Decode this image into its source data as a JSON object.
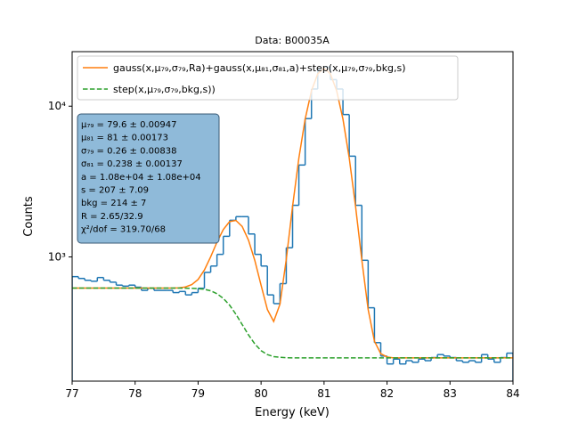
{
  "chart_data": {
    "type": "fit",
    "title": "Data: B00035A",
    "xlabel": "Energy (keV)",
    "ylabel": "Counts",
    "xlim": [
      77,
      84
    ],
    "xticks": [
      77,
      78,
      79,
      80,
      81,
      82,
      83,
      84
    ],
    "ylim": [
      150,
      23000
    ],
    "yticks": [
      {
        "value": 1000,
        "label": "10³"
      },
      {
        "value": 10000,
        "label": "10⁴"
      }
    ],
    "log_y": true,
    "histogram": {
      "color": "#1f77b4",
      "bins": [
        77.0,
        77.1,
        77.2,
        77.3,
        77.4,
        77.5,
        77.6,
        77.7,
        77.8,
        77.9,
        78.0,
        78.1,
        78.2,
        78.3,
        78.4,
        78.5,
        78.6,
        78.7,
        78.8,
        78.9,
        79.0,
        79.1,
        79.2,
        79.3,
        79.4,
        79.5,
        79.6,
        79.7,
        79.8,
        79.9,
        80.0,
        80.1,
        80.2,
        80.3,
        80.4,
        80.5,
        80.6,
        80.7,
        80.8,
        80.9,
        81.0,
        81.1,
        81.2,
        81.3,
        81.4,
        81.5,
        81.6,
        81.7,
        81.8,
        81.9,
        82.0,
        82.1,
        82.2,
        82.3,
        82.4,
        82.5,
        82.6,
        82.7,
        82.8,
        82.9,
        83.0,
        83.1,
        83.2,
        83.3,
        83.4,
        83.5,
        83.6,
        83.7,
        83.8,
        83.9,
        84.0
      ],
      "counts": [
        740,
        720,
        700,
        690,
        730,
        700,
        680,
        650,
        640,
        650,
        630,
        600,
        620,
        600,
        600,
        600,
        580,
        590,
        560,
        580,
        620,
        790,
        870,
        1040,
        1370,
        1750,
        1850,
        1850,
        1420,
        1040,
        870,
        560,
        490,
        665,
        1150,
        2200,
        4070,
        8270,
        13000,
        17500,
        18200,
        15000,
        13000,
        8800,
        4660,
        2200,
        950,
        460,
        270,
        220,
        195,
        210,
        195,
        205,
        200,
        210,
        205,
        215,
        225,
        220,
        215,
        205,
        200,
        205,
        200,
        225,
        210,
        200,
        215,
        230
      ]
    },
    "x": [
      77.0,
      77.1,
      77.2,
      77.3,
      77.4,
      77.5,
      77.6,
      77.7,
      77.8,
      77.9,
      78.0,
      78.1,
      78.2,
      78.3,
      78.4,
      78.5,
      78.6,
      78.7,
      78.8,
      78.9,
      79.0,
      79.1,
      79.2,
      79.3,
      79.4,
      79.5,
      79.6,
      79.7,
      79.8,
      79.9,
      80.0,
      80.1,
      80.2,
      80.3,
      80.4,
      80.5,
      80.6,
      80.7,
      80.8,
      80.9,
      81.0,
      81.1,
      81.2,
      81.3,
      81.4,
      81.5,
      81.6,
      81.7,
      81.8,
      81.9,
      82.0,
      82.1,
      82.2,
      82.3,
      82.4,
      82.5,
      82.6,
      82.7,
      82.8,
      82.9,
      83.0,
      83.1,
      83.2,
      83.3,
      83.4,
      83.5,
      83.6,
      83.7,
      83.8,
      83.9,
      84.0
    ],
    "series": [
      {
        "name": "gauss(x,μ₇₉,σ₇₉,Ra)+gauss(x,μ₈₁,σ₈₁,a)+step(x,μ₇₉,σ₇₉,bkg,s)",
        "color": "#ff7f0e",
        "dashed": false,
        "values": [
          621,
          621,
          621,
          621,
          621,
          621,
          621,
          621,
          621,
          621,
          621,
          621,
          621,
          621,
          621,
          621,
          621,
          624,
          632,
          655,
          709,
          819,
          1003,
          1254,
          1520,
          1715,
          1747,
          1592,
          1293,
          949,
          649,
          448,
          373,
          486,
          964,
          2167,
          4524,
          8214,
          12654,
          16414,
          17914,
          16414,
          12654,
          8214,
          4524,
          2164,
          952,
          448,
          276,
          228,
          217,
          214,
          214,
          214,
          214,
          214,
          214,
          214,
          214,
          214,
          214,
          214,
          214,
          214,
          214,
          214,
          214,
          214,
          214,
          214,
          214
        ]
      },
      {
        "name": "step(x,μ₇₉,σ₇₉,bkg,s))",
        "color": "#2ca02c",
        "dashed": true,
        "values": [
          621,
          621,
          621,
          621,
          621,
          621,
          621,
          621,
          621,
          621,
          621,
          621,
          621,
          621,
          621,
          621,
          621,
          621,
          620,
          619,
          616,
          610,
          596,
          570,
          531,
          479,
          417,
          356,
          304,
          265,
          239,
          225,
          218,
          216,
          214.5,
          214,
          214,
          214,
          214,
          214,
          214,
          214,
          214,
          214,
          214,
          214,
          214,
          214,
          214,
          214,
          214,
          214,
          214,
          214,
          214,
          214,
          214,
          214,
          214,
          214,
          214,
          214,
          214,
          214,
          214,
          214,
          214,
          214,
          214,
          214,
          214
        ]
      }
    ],
    "annotation_lines": [
      "μ₇₉ = 79.6 ± 0.00947",
      "μ₈₁ = 81 ± 0.00173",
      "σ₇₉ = 0.26 ± 0.00838",
      "σ₈₁ = 0.238 ± 0.00137",
      "a = 1.08e+04 ± 1.08e+04",
      "s = 207 ± 7.09",
      "bkg = 214 ± 7",
      "R = 2.65/32.9",
      "χ²/dof = 319.70/68"
    ]
  }
}
